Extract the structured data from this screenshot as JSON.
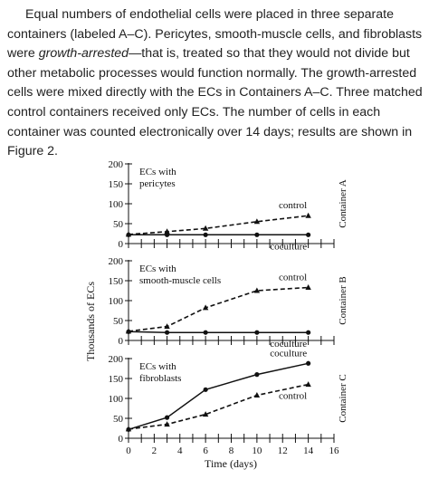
{
  "passage": {
    "p1": "Equal numbers of endothelial cells were placed in three separate containers (labeled A–C). Pericytes, smooth-muscle cells, and fibroblasts were ",
    "emph": "growth-arrested",
    "p2": "—that is, treated so that they would not divide but other metabolic processes would function normally. The growth-arrested cells were mixed directly with the ECs in Containers A–C. Three matched control containers received only ECs. The number of cells in each container was counted electronically over 14 days; results are shown in Figure 2."
  },
  "chart_data": [
    {
      "type": "line",
      "annotation": "ECs with pericytes",
      "container_label": "Container A",
      "ylim": [
        0,
        200
      ],
      "yticks": [
        0,
        50,
        100,
        150,
        200
      ],
      "xlim": [
        0,
        16
      ],
      "series": [
        {
          "name": "control",
          "style": "dashed",
          "marker": "triangle",
          "x": [
            0,
            3,
            6,
            10,
            14
          ],
          "y": [
            23,
            30,
            38,
            55,
            70
          ]
        },
        {
          "name": "coculture",
          "style": "solid",
          "marker": "circle",
          "x": [
            0,
            3,
            6,
            10,
            14
          ],
          "y": [
            22,
            22,
            22,
            22,
            22
          ]
        }
      ]
    },
    {
      "type": "line",
      "annotation": "ECs with smooth-muscle cells",
      "container_label": "Container B",
      "ylim": [
        0,
        200
      ],
      "yticks": [
        0,
        50,
        100,
        150,
        200
      ],
      "xlim": [
        0,
        16
      ],
      "series": [
        {
          "name": "control",
          "style": "dashed",
          "marker": "triangle",
          "x": [
            0,
            3,
            6,
            10,
            14
          ],
          "y": [
            23,
            35,
            82,
            125,
            133
          ]
        },
        {
          "name": "coculture",
          "style": "solid",
          "marker": "circle",
          "x": [
            0,
            3,
            6,
            10,
            14
          ],
          "y": [
            22,
            20,
            20,
            20,
            20
          ]
        }
      ]
    },
    {
      "type": "line",
      "annotation": "ECs with fibroblasts",
      "container_label": "Container C",
      "ylim": [
        0,
        200
      ],
      "yticks": [
        0,
        50,
        100,
        150,
        200
      ],
      "xlim": [
        0,
        16
      ],
      "xticks": [
        0,
        2,
        4,
        6,
        8,
        10,
        12,
        14,
        16
      ],
      "xlabel": "Time (days)",
      "series": [
        {
          "name": "control",
          "style": "dashed",
          "marker": "triangle",
          "x": [
            0,
            3,
            6,
            10,
            14
          ],
          "y": [
            23,
            35,
            60,
            108,
            135
          ]
        },
        {
          "name": "coculture",
          "style": "solid",
          "marker": "circle",
          "x": [
            0,
            3,
            6,
            10,
            14
          ],
          "y": [
            22,
            52,
            122,
            160,
            188
          ]
        }
      ]
    }
  ],
  "figure": {
    "ylabel": "Thousands of ECs",
    "xlabel": "Time (days)"
  }
}
